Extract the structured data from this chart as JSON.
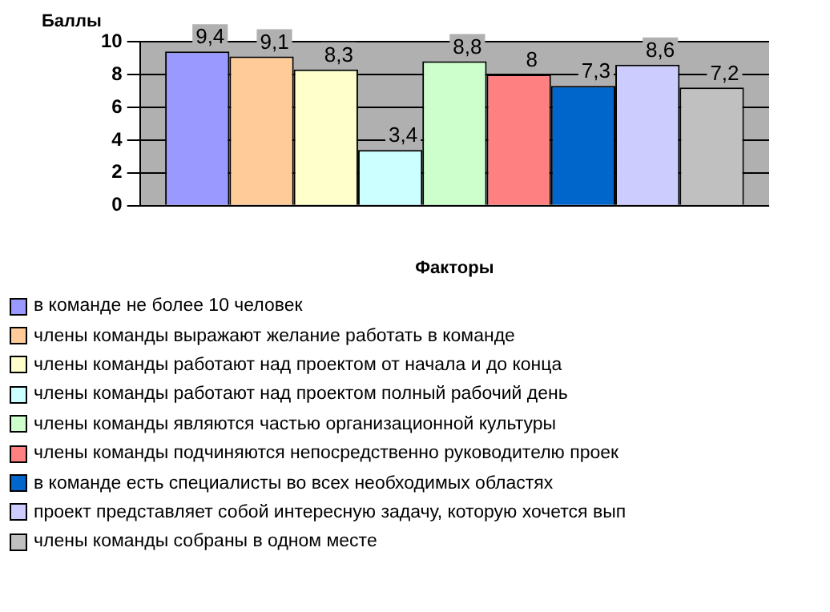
{
  "chart_data": {
    "type": "bar",
    "ylabel": "Баллы",
    "xlabel": "Факторы",
    "categories": [
      null
    ],
    "ylim": [
      0,
      10
    ],
    "yticks": [
      0,
      2,
      4,
      6,
      8,
      10
    ],
    "grid": "y",
    "legend": "bottom",
    "series": [
      {
        "name": "в команде не более 10 человек",
        "color": "#9999ff",
        "values": [
          9.4
        ],
        "value_labels": [
          "9,4"
        ]
      },
      {
        "name": "члены команды выражают желание работать в команде",
        "color": "#ffcc99",
        "values": [
          9.1
        ],
        "value_labels": [
          "9,1"
        ]
      },
      {
        "name": "члены команды работают над проектом от начала и до конца",
        "color": "#ffffcc",
        "values": [
          8.3
        ],
        "value_labels": [
          "8,3"
        ]
      },
      {
        "name": "члены команды работают над проектом полный рабочий день",
        "color": "#ccffff",
        "values": [
          3.4
        ],
        "value_labels": [
          "3,4"
        ]
      },
      {
        "name": "члены команды являются частью организационной культуры",
        "color": "#ccffcc",
        "values": [
          8.8
        ],
        "value_labels": [
          "8,8"
        ]
      },
      {
        "name": "члены команды подчиняются непосредственно руководителю проек",
        "color": "#ff8080",
        "values": [
          8
        ],
        "value_labels": [
          "8"
        ]
      },
      {
        "name": "в команде есть специалисты во всех необходимых областях",
        "color": "#0066cc",
        "values": [
          7.3
        ],
        "value_labels": [
          "7,3"
        ]
      },
      {
        "name": "проект представляет собой интересную задачу, которую хочется вып",
        "color": "#ccccff",
        "values": [
          8.6
        ],
        "value_labels": [
          "8,6"
        ]
      },
      {
        "name": "члены команды собраны в одном месте",
        "color": "#c0c0c0",
        "values": [
          7.2
        ],
        "value_labels": [
          "7,2"
        ]
      }
    ]
  }
}
